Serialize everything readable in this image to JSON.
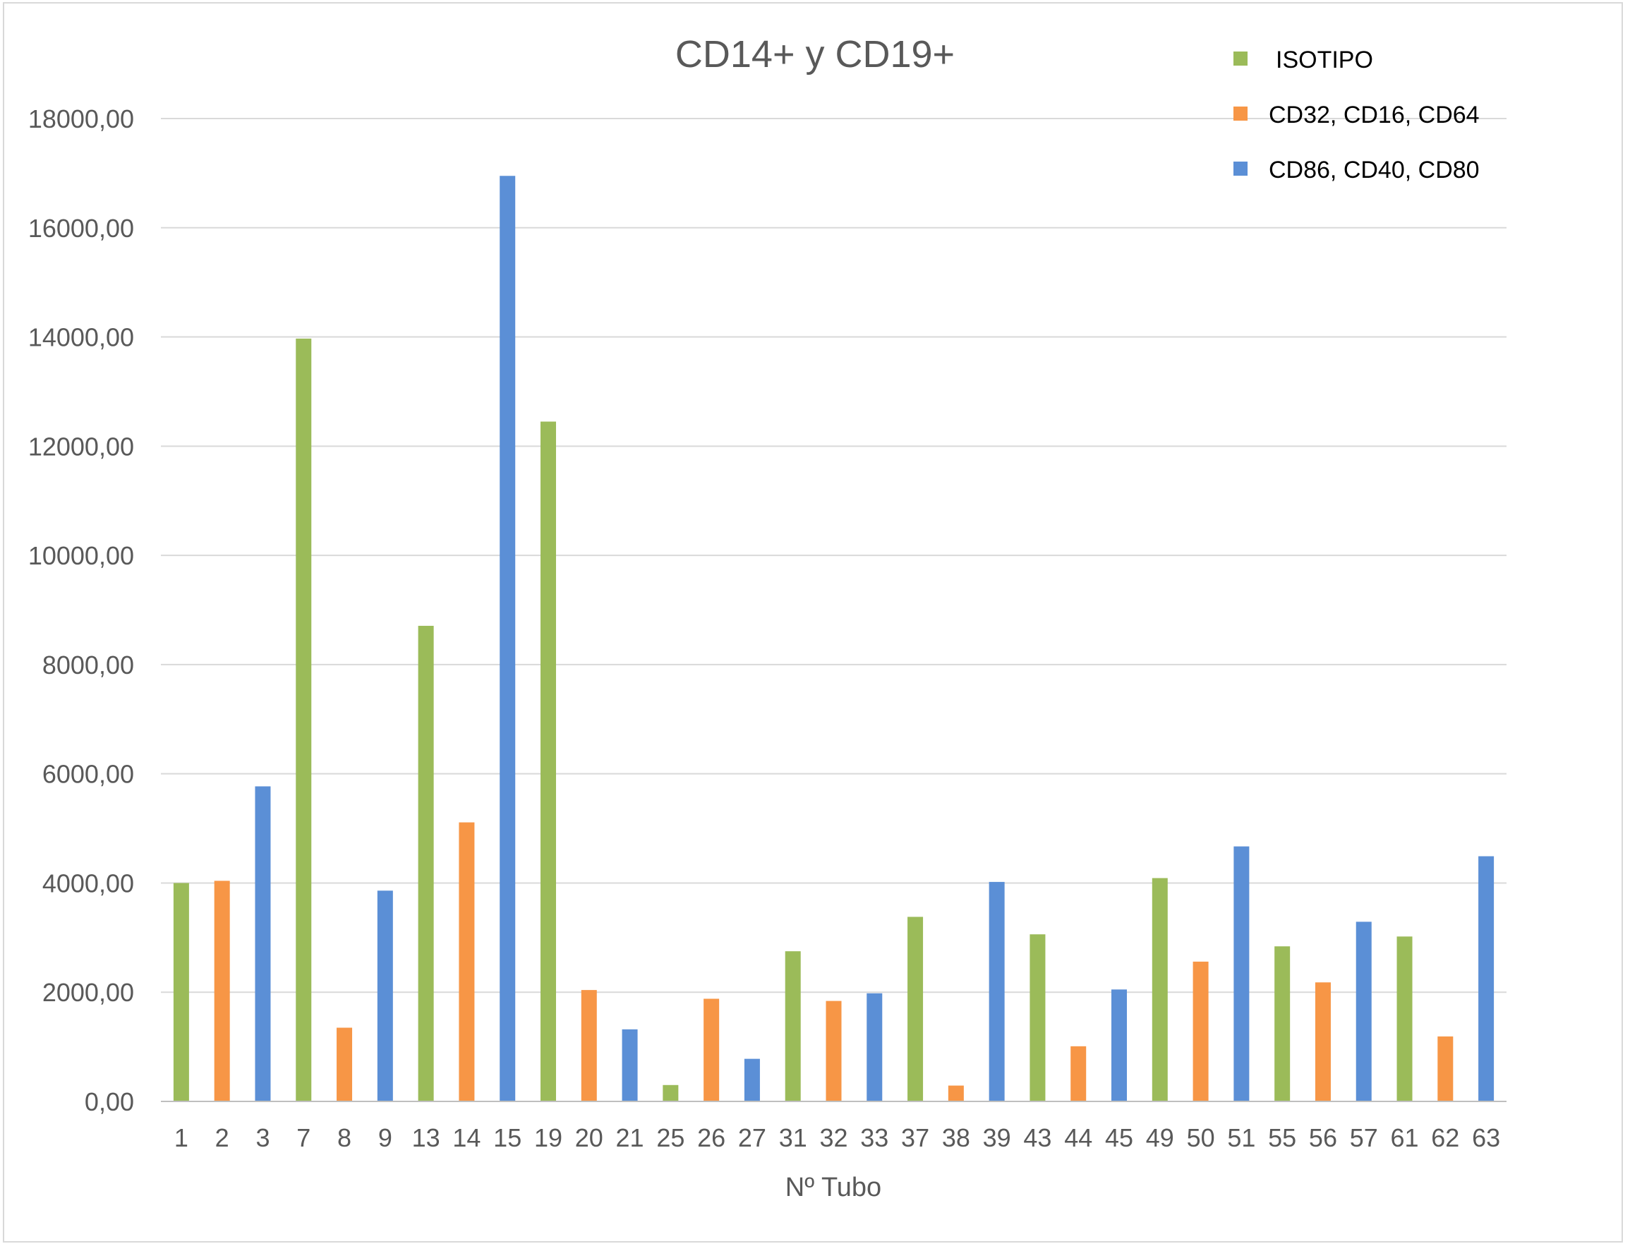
{
  "chart_data": {
    "type": "bar",
    "title": "CD14+ y CD19+",
    "xlabel": "Nº Tubo",
    "ylabel": "",
    "ylim": [
      0,
      18000
    ],
    "yticks": [
      "0,00",
      "2000,00",
      "4000,00",
      "6000,00",
      "8000,00",
      "10000,00",
      "12000,00",
      "14000,00",
      "16000,00",
      "18000,00"
    ],
    "grid": true,
    "legend_position": "top-right",
    "categories": [
      "1",
      "2",
      "3",
      "7",
      "8",
      "9",
      "13",
      "14",
      "15",
      "19",
      "20",
      "21",
      "25",
      "26",
      "27",
      "31",
      "32",
      "33",
      "37",
      "38",
      "39",
      "43",
      "44",
      "45",
      "49",
      "50",
      "51",
      "55",
      "56",
      "57",
      "61",
      "62",
      "63"
    ],
    "series": [
      {
        "name": "ISOTIPO",
        "color": "#9bbb59",
        "values": [
          4000,
          null,
          null,
          13970,
          null,
          null,
          8710,
          null,
          null,
          12450,
          null,
          null,
          300,
          null,
          null,
          2750,
          null,
          null,
          3380,
          null,
          null,
          3060,
          null,
          null,
          4090,
          null,
          null,
          2840,
          null,
          null,
          3020,
          null,
          null
        ]
      },
      {
        "name": "CD32, CD16, CD64",
        "color": "#f79646",
        "values": [
          null,
          4040,
          null,
          null,
          1350,
          null,
          null,
          5110,
          null,
          null,
          2040,
          null,
          null,
          1880,
          null,
          null,
          1840,
          null,
          null,
          290,
          null,
          null,
          1010,
          null,
          null,
          2560,
          null,
          null,
          2180,
          null,
          null,
          1190,
          null
        ]
      },
      {
        "name": "CD86, CD40, CD80",
        "color": "#5b8fd6",
        "values": [
          null,
          null,
          5770,
          null,
          null,
          3860,
          null,
          null,
          16950,
          null,
          null,
          1320,
          null,
          null,
          780,
          null,
          null,
          1980,
          null,
          null,
          4020,
          null,
          null,
          2050,
          null,
          null,
          4670,
          null,
          null,
          3290,
          null,
          null,
          4490
        ]
      }
    ]
  }
}
